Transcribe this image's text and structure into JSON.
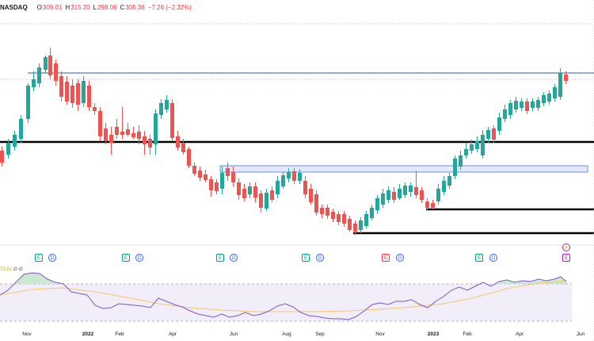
{
  "header": {
    "symbol": "NASDAQ",
    "open_label": "O",
    "open": "309.01",
    "high_label": "H",
    "high": "315.20",
    "low_label": "L",
    "low": "298.06",
    "close_label": "C",
    "close": "305.38",
    "change": "−7.26 (−2.32%)"
  },
  "oscillator": {
    "value": "73.51",
    "extra": "∅ ∅"
  },
  "time_axis": [
    "Nov",
    "2022",
    "Feb",
    "Apr",
    "Jun",
    "Aug",
    "Sep",
    "Nov",
    "2023",
    "Feb",
    "Apr",
    "Jun"
  ],
  "event_markers": [
    {
      "type": "E",
      "kind": "earnings"
    },
    {
      "type": "D",
      "kind": "dividend"
    },
    {
      "type": "E",
      "kind": "earnings"
    },
    {
      "type": "D",
      "kind": "dividend"
    },
    {
      "type": "E",
      "kind": "earnings"
    },
    {
      "type": "D",
      "kind": "dividend"
    },
    {
      "type": "E",
      "kind": "earnings"
    },
    {
      "type": "D",
      "kind": "dividend"
    },
    {
      "type": "E",
      "kind": "earnings-miss"
    },
    {
      "type": "D",
      "kind": "dividend"
    },
    {
      "type": "E",
      "kind": "earnings"
    },
    {
      "type": "D",
      "kind": "dividend"
    },
    {
      "type": "⚡",
      "kind": "upcoming"
    },
    {
      "type": "E",
      "kind": "upcoming-earnings"
    }
  ],
  "colors": {
    "up": "#26a69a",
    "down": "#ef5350",
    "level_line": "#000000",
    "resistance_line": "#2962ff",
    "rsi": "#7e57c2",
    "rsi_ma": "#f7c76b",
    "zone_fill": "#dfe6fb"
  },
  "chart_data": {
    "type": "candlestick",
    "candles": [
      [
        0.0,
        0,
        0
      ],
      [
        0,
        0,
        0
      ]
    ]
  }
}
